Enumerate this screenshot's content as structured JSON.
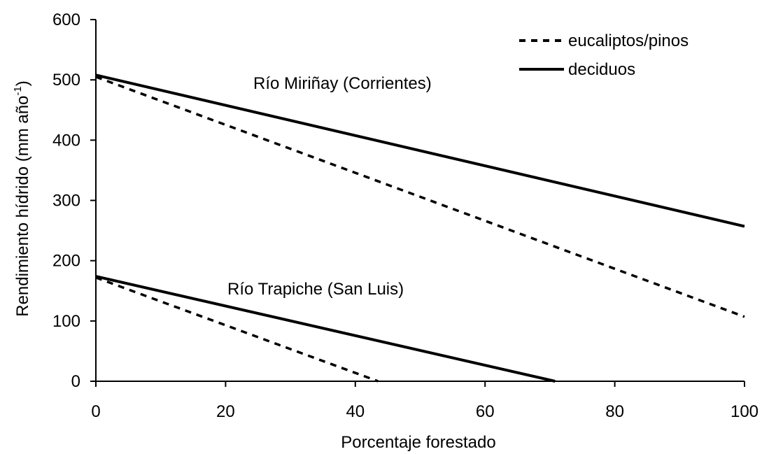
{
  "chart_data": {
    "type": "line",
    "title": "",
    "xlabel": "Porcentaje forestado",
    "ylabel": "Rendimiento hídrido (mm año",
    "ylabel_sup": "-1",
    "ylabel_close": ")",
    "xlim": [
      0,
      100
    ],
    "ylim": [
      0,
      600
    ],
    "x_ticks": [
      "0",
      "20",
      "40",
      "60",
      "80",
      "100"
    ],
    "y_ticks": [
      "0",
      "100",
      "200",
      "300",
      "400",
      "500",
      "600"
    ],
    "grid": false,
    "legend_position": "top-right",
    "legend": [
      {
        "label": "eucaliptos/pinos",
        "style": "dashed"
      },
      {
        "label": "deciduos",
        "style": "solid"
      }
    ],
    "annotations": [
      {
        "text": "Río Miriñay (Corrientes)"
      },
      {
        "text": "Río Trapiche (San Luis)"
      }
    ],
    "series": [
      {
        "legend_index": 0,
        "style": "dashed",
        "x": [
          0,
          100
        ],
        "y": [
          505,
          107
        ]
      },
      {
        "legend_index": 1,
        "style": "solid",
        "x": [
          0,
          100
        ],
        "y": [
          508,
          257
        ]
      },
      {
        "legend_index": 0,
        "style": "dashed",
        "x": [
          0,
          43.5
        ],
        "y": [
          172,
          0
        ]
      },
      {
        "legend_index": 1,
        "style": "solid",
        "x": [
          0,
          70.8
        ],
        "y": [
          174,
          0
        ]
      }
    ]
  }
}
